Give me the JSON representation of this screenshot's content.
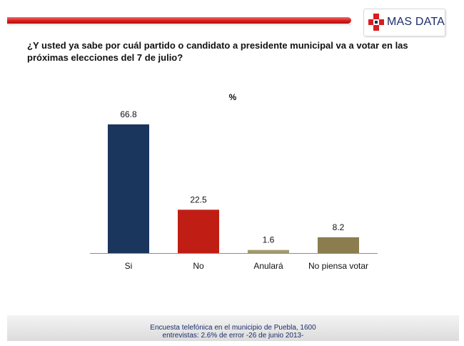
{
  "logo": {
    "text": "MAS DATA",
    "icon": "cross-icon"
  },
  "question": "¿Y usted ya sabe por cuál partido o candidato a presidente municipal va a votar en las próximas elecciones del 7 de julio?",
  "chart_data": {
    "type": "bar",
    "unit_label": "%",
    "categories": [
      "Si",
      "No",
      "Anulará",
      "No piensa votar"
    ],
    "values": [
      66.8,
      22.5,
      1.6,
      8.2
    ],
    "value_labels": [
      "66.8",
      "22.5",
      "1.6",
      "8.2"
    ],
    "colors": [
      "#1b365d",
      "#c01e14",
      "#a39a6b",
      "#8b7d4e"
    ],
    "ylim": [
      0,
      66.8
    ],
    "grid": false,
    "legend": "none"
  },
  "footer": {
    "line1": "Encuesta telefónica en el municipio de Puebla, 1600",
    "line2": "entrevistas: 2.6% de error -26 de junio 2013-"
  }
}
